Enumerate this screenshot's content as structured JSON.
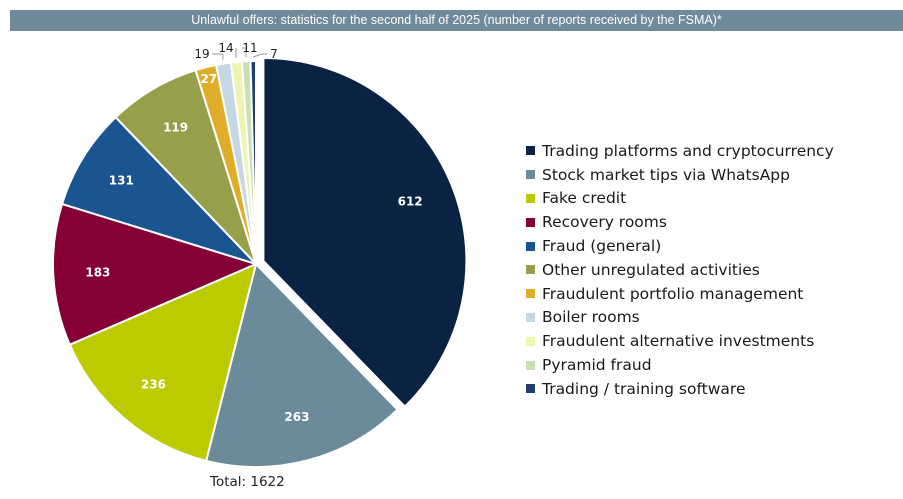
{
  "chart_data": {
    "type": "pie",
    "title": "Unlawful offers: statistics for the second half of 2025 (number of reports received by the FSMA)*",
    "total_label": "Total: 1622",
    "legend_position": "right",
    "slices": [
      {
        "name": "Trading platforms and cryptocurrency",
        "value": 612,
        "color": "#0b2343",
        "exploded": true
      },
      {
        "name": "Stock market tips via WhatsApp",
        "value": 263,
        "color": "#6b8a9a"
      },
      {
        "name": "Fake credit",
        "value": 236,
        "color": "#bccb00"
      },
      {
        "name": "Recovery rooms",
        "value": 183,
        "color": "#840036"
      },
      {
        "name": "Fraud (general)",
        "value": 131,
        "color": "#1b5590"
      },
      {
        "name": "Other unregulated activities",
        "value": 119,
        "color": "#979f4b"
      },
      {
        "name": "Fraudulent portfolio management",
        "value": 27,
        "color": "#dfad28"
      },
      {
        "name": "Boiler rooms",
        "value": 19,
        "color": "#c6d7e4"
      },
      {
        "name": "Fraudulent alternative investments",
        "value": 14,
        "color": "#eef4b2"
      },
      {
        "name": "Pyramid fraud",
        "value": 11,
        "color": "#c9e1b2"
      },
      {
        "name": "Trading / training software",
        "value": 7,
        "color": "#203e70"
      }
    ]
  }
}
